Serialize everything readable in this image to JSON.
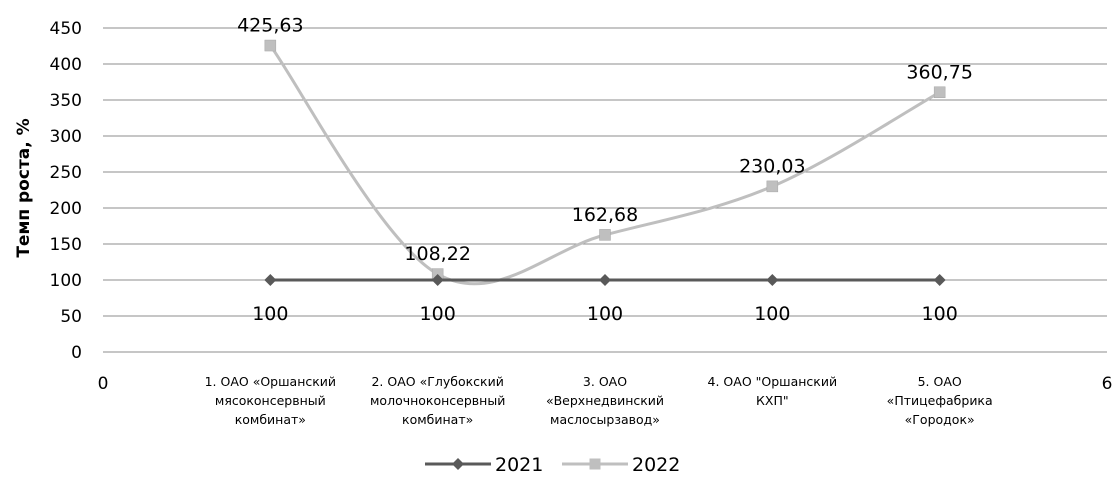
{
  "chart_data": {
    "type": "line",
    "ylabel": "Темп роста, %",
    "xlabel": "",
    "ylim": [
      0,
      450
    ],
    "yticks": [
      0,
      50,
      100,
      150,
      200,
      250,
      300,
      350,
      400,
      450
    ],
    "xlim": [
      0,
      6
    ],
    "xticks": [
      0,
      6
    ],
    "categories": [
      [
        "1. ОАО «Оршанский",
        "мясоконсервный",
        "комбинат»"
      ],
      [
        "2. ОАО «Глубокский",
        "молочноконсервный",
        "комбинат»"
      ],
      [
        "3. ОАО",
        "«Верхнедвинский",
        "маслосырзавод»"
      ],
      [
        "4. ОАО \"Оршанский",
        "КХП\""
      ],
      [
        "5. ОАО",
        "«Птицефабрика",
        "«Городок»"
      ]
    ],
    "x": [
      1,
      2,
      3,
      4,
      5
    ],
    "series": [
      {
        "name": "2021",
        "values": [
          100,
          100,
          100,
          100,
          100
        ],
        "labels": [
          "100",
          "100",
          "100",
          "100",
          "100"
        ],
        "color": "#595959",
        "marker": "diamond"
      },
      {
        "name": "2022",
        "values": [
          425.63,
          108.22,
          162.68,
          230.03,
          360.75
        ],
        "labels": [
          "425,63",
          "108,22",
          "162,68",
          "230,03",
          "360,75"
        ],
        "color": "#bfbfbf",
        "marker": "square",
        "smooth": true
      }
    ],
    "grid": "horizontal",
    "legend": "bottom"
  }
}
